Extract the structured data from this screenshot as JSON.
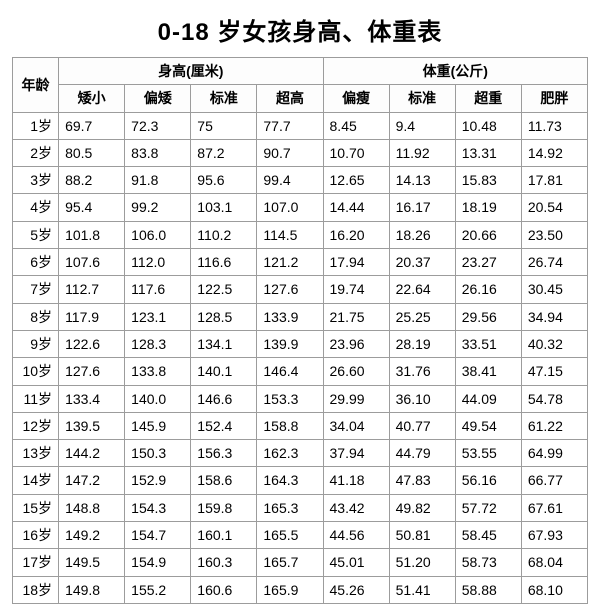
{
  "title": "0-18 岁女孩身高、体重表",
  "headers": {
    "age": "年龄",
    "height_group": "身高(厘米)",
    "weight_group": "体重(公斤)",
    "height_cols": [
      "矮小",
      "偏矮",
      "标准",
      "超高"
    ],
    "weight_cols": [
      "偏瘦",
      "标准",
      "超重",
      "肥胖"
    ]
  },
  "colors": {
    "border": "#9c9c9c",
    "background": "#ffffff",
    "text": "#000000"
  },
  "typography": {
    "title_fontsize": 24,
    "cell_fontsize": 14,
    "font_family": "SimHei / Microsoft YaHei"
  },
  "rows": [
    {
      "age": "1岁",
      "h": [
        "69.7",
        "72.3",
        "75",
        "77.7"
      ],
      "w": [
        "8.45",
        "9.4",
        "10.48",
        "11.73"
      ]
    },
    {
      "age": "2岁",
      "h": [
        "80.5",
        "83.8",
        "87.2",
        "90.7"
      ],
      "w": [
        "10.70",
        "11.92",
        "13.31",
        "14.92"
      ]
    },
    {
      "age": "3岁",
      "h": [
        "88.2",
        "91.8",
        "95.6",
        "99.4"
      ],
      "w": [
        "12.65",
        "14.13",
        "15.83",
        "17.81"
      ]
    },
    {
      "age": "4岁",
      "h": [
        "95.4",
        "99.2",
        "103.1",
        "107.0"
      ],
      "w": [
        "14.44",
        "16.17",
        "18.19",
        "20.54"
      ]
    },
    {
      "age": "5岁",
      "h": [
        "101.8",
        "106.0",
        "110.2",
        "114.5"
      ],
      "w": [
        "16.20",
        "18.26",
        "20.66",
        "23.50"
      ]
    },
    {
      "age": "6岁",
      "h": [
        "107.6",
        "112.0",
        "116.6",
        "121.2"
      ],
      "w": [
        "17.94",
        "20.37",
        "23.27",
        "26.74"
      ]
    },
    {
      "age": "7岁",
      "h": [
        "112.7",
        "117.6",
        "122.5",
        "127.6"
      ],
      "w": [
        "19.74",
        "22.64",
        "26.16",
        "30.45"
      ]
    },
    {
      "age": "8岁",
      "h": [
        "117.9",
        "123.1",
        "128.5",
        "133.9"
      ],
      "w": [
        "21.75",
        "25.25",
        "29.56",
        "34.94"
      ]
    },
    {
      "age": "9岁",
      "h": [
        "122.6",
        "128.3",
        "134.1",
        "139.9"
      ],
      "w": [
        "23.96",
        "28.19",
        "33.51",
        "40.32"
      ]
    },
    {
      "age": "10岁",
      "h": [
        "127.6",
        "133.8",
        "140.1",
        "146.4"
      ],
      "w": [
        "26.60",
        "31.76",
        "38.41",
        "47.15"
      ]
    },
    {
      "age": "11岁",
      "h": [
        "133.4",
        "140.0",
        "146.6",
        "153.3"
      ],
      "w": [
        "29.99",
        "36.10",
        "44.09",
        "54.78"
      ]
    },
    {
      "age": "12岁",
      "h": [
        "139.5",
        "145.9",
        "152.4",
        "158.8"
      ],
      "w": [
        "34.04",
        "40.77",
        "49.54",
        "61.22"
      ]
    },
    {
      "age": "13岁",
      "h": [
        "144.2",
        "150.3",
        "156.3",
        "162.3"
      ],
      "w": [
        "37.94",
        "44.79",
        "53.55",
        "64.99"
      ]
    },
    {
      "age": "14岁",
      "h": [
        "147.2",
        "152.9",
        "158.6",
        "164.3"
      ],
      "w": [
        "41.18",
        "47.83",
        "56.16",
        "66.77"
      ]
    },
    {
      "age": "15岁",
      "h": [
        "148.8",
        "154.3",
        "159.8",
        "165.3"
      ],
      "w": [
        "43.42",
        "49.82",
        "57.72",
        "67.61"
      ]
    },
    {
      "age": "16岁",
      "h": [
        "149.2",
        "154.7",
        "160.1",
        "165.5"
      ],
      "w": [
        "44.56",
        "50.81",
        "58.45",
        "67.93"
      ]
    },
    {
      "age": "17岁",
      "h": [
        "149.5",
        "154.9",
        "160.3",
        "165.7"
      ],
      "w": [
        "45.01",
        "51.20",
        "58.73",
        "68.04"
      ]
    },
    {
      "age": "18岁",
      "h": [
        "149.8",
        "155.2",
        "160.6",
        "165.9"
      ],
      "w": [
        "45.26",
        "51.41",
        "58.88",
        "68.10"
      ]
    }
  ]
}
